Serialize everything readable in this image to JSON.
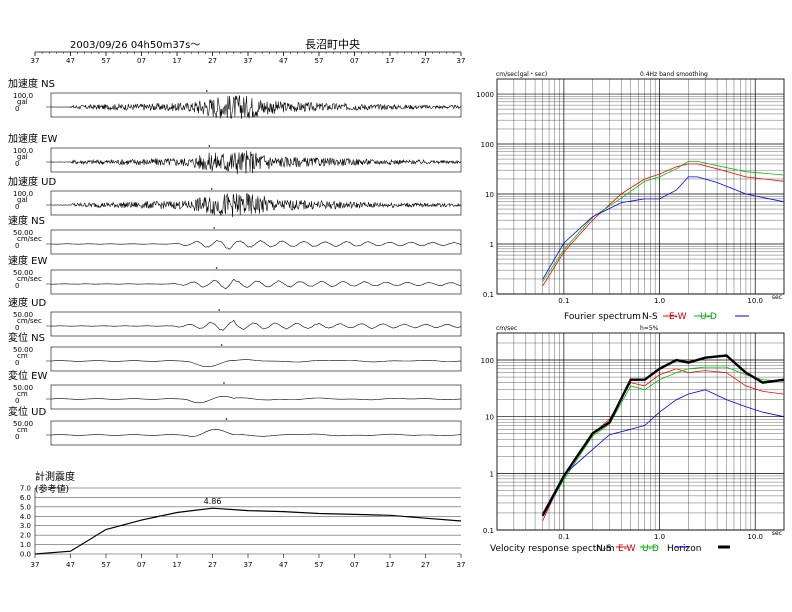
{
  "header": {
    "datetime": "2003/09/26  04h50m37s～",
    "station": "長沼町中央"
  },
  "time_ticks": [
    "37",
    "47",
    "57",
    "07",
    "17",
    "27",
    "37",
    "47",
    "57",
    "07",
    "17",
    "27",
    "37"
  ],
  "traces": [
    {
      "title": "加速度 NS",
      "scale": "100.0",
      "unit": "gal",
      "zero": "0"
    },
    {
      "title": "加速度 EW",
      "scale": "100.0",
      "unit": "gal",
      "zero": "0"
    },
    {
      "title": "加速度 UD",
      "scale": "100.0",
      "unit": "gal",
      "zero": "0"
    },
    {
      "title": "速度 NS",
      "scale": "50.00",
      "unit": "cm/sec",
      "zero": "0"
    },
    {
      "title": "速度 EW",
      "scale": "50.00",
      "unit": "cm/sec",
      "zero": "0"
    },
    {
      "title": "速度 UD",
      "scale": "50.00",
      "unit": "cm/sec",
      "zero": "0"
    },
    {
      "title": "変位 NS",
      "scale": "50.00",
      "unit": "cm",
      "zero": "0"
    },
    {
      "title": "変位 EW",
      "scale": "50.00",
      "unit": "cm",
      "zero": "0"
    },
    {
      "title": "変位 UD",
      "scale": "50.00",
      "unit": "cm",
      "zero": "0"
    }
  ],
  "intensity": {
    "title": "計測震度",
    "subtitle": "(参考値)",
    "ticks": [
      "7.0",
      "6.0",
      "5.0",
      "4.0",
      "3.0",
      "2.0",
      "1.0",
      "0.0"
    ],
    "peak_label": "4.86"
  },
  "fourier": {
    "yunit": "cm/sec(gal・sec)",
    "note": "0.4Hz band smoothing",
    "yticks": [
      "1000",
      "100",
      "10",
      "1",
      "0.1"
    ],
    "xticks": [
      "0.1",
      "1.0",
      "10.0"
    ],
    "xunit": "sec",
    "legend_title": "Fourier spectrum",
    "legend": [
      "N-S",
      "E-W",
      "U-D"
    ]
  },
  "velocity_response": {
    "yunit": "cm/sec",
    "note": "h=5%",
    "yticks": [
      "100",
      "10",
      "1",
      "0.1"
    ],
    "xticks": [
      "0.1",
      "1.0",
      "10.0"
    ],
    "xunit": "sec",
    "legend_title": "Velocity response spectrum",
    "legend": [
      "N-S",
      "E-W",
      "U-D",
      "Horizon"
    ]
  },
  "colors": {
    "ns": "#ff0000",
    "ew": "#00c000",
    "ud": "#0000ff",
    "horizon": "#000000",
    "grid": "#000000"
  },
  "chart_data": [
    {
      "type": "line",
      "title": "計測震度",
      "xlabel": "",
      "ylabel": "",
      "ylim": [
        0,
        7
      ],
      "x": [
        "04:50:37",
        "04:50:47",
        "04:50:57",
        "04:51:07",
        "04:51:17",
        "04:51:27",
        "04:51:37",
        "04:51:47",
        "04:51:57",
        "04:52:07",
        "04:52:17",
        "04:52:27",
        "04:52:37"
      ],
      "values": [
        0.0,
        0.3,
        2.6,
        3.6,
        4.4,
        4.86,
        4.6,
        4.5,
        4.3,
        4.2,
        4.1,
        3.8,
        3.5
      ],
      "peak": 4.86
    },
    {
      "type": "line",
      "title": "Fourier spectrum",
      "xlabel": "sec",
      "ylabel": "cm/sec(gal・sec)",
      "xscale": "log",
      "yscale": "log",
      "xlim": [
        0.02,
        20
      ],
      "ylim": [
        0.1,
        1000
      ],
      "x": [
        0.06,
        0.1,
        0.2,
        0.4,
        0.7,
        1.0,
        1.5,
        2.0,
        2.5,
        4.0,
        8.0,
        20.0
      ],
      "series": [
        {
          "name": "N-S",
          "values": [
            0.15,
            0.6,
            3,
            9,
            20,
            25,
            35,
            40,
            40,
            32,
            22,
            18
          ]
        },
        {
          "name": "E-W",
          "values": [
            0.15,
            0.7,
            3,
            8,
            18,
            22,
            32,
            45,
            45,
            37,
            28,
            24
          ]
        },
        {
          "name": "U-D",
          "values": [
            0.2,
            1.0,
            4,
            7,
            8,
            8,
            12,
            22,
            22,
            17,
            10,
            7
          ]
        }
      ]
    },
    {
      "type": "line",
      "title": "Velocity response spectrum",
      "xlabel": "sec",
      "ylabel": "cm/sec",
      "xscale": "log",
      "yscale": "log",
      "xlim": [
        0.02,
        20
      ],
      "ylim": [
        0.1,
        300
      ],
      "x": [
        0.06,
        0.1,
        0.2,
        0.3,
        0.5,
        0.7,
        1.0,
        1.5,
        2.0,
        3.0,
        5.0,
        8.0,
        12.0,
        20.0
      ],
      "series": [
        {
          "name": "N-S",
          "values": [
            0.15,
            0.8,
            5,
            8,
            40,
            35,
            55,
            70,
            60,
            65,
            60,
            35,
            28,
            25
          ]
        },
        {
          "name": "E-W",
          "values": [
            0.15,
            0.7,
            4,
            7,
            35,
            30,
            45,
            60,
            70,
            75,
            75,
            55,
            45,
            42
          ]
        },
        {
          "name": "U-D",
          "values": [
            0.2,
            0.9,
            3,
            5,
            6,
            7,
            12,
            20,
            25,
            30,
            20,
            15,
            12,
            10
          ]
        },
        {
          "name": "Horizon",
          "values": [
            0.15,
            0.9,
            5,
            9,
            45,
            45,
            70,
            100,
            90,
            110,
            120,
            60,
            40,
            45
          ]
        }
      ]
    }
  ]
}
